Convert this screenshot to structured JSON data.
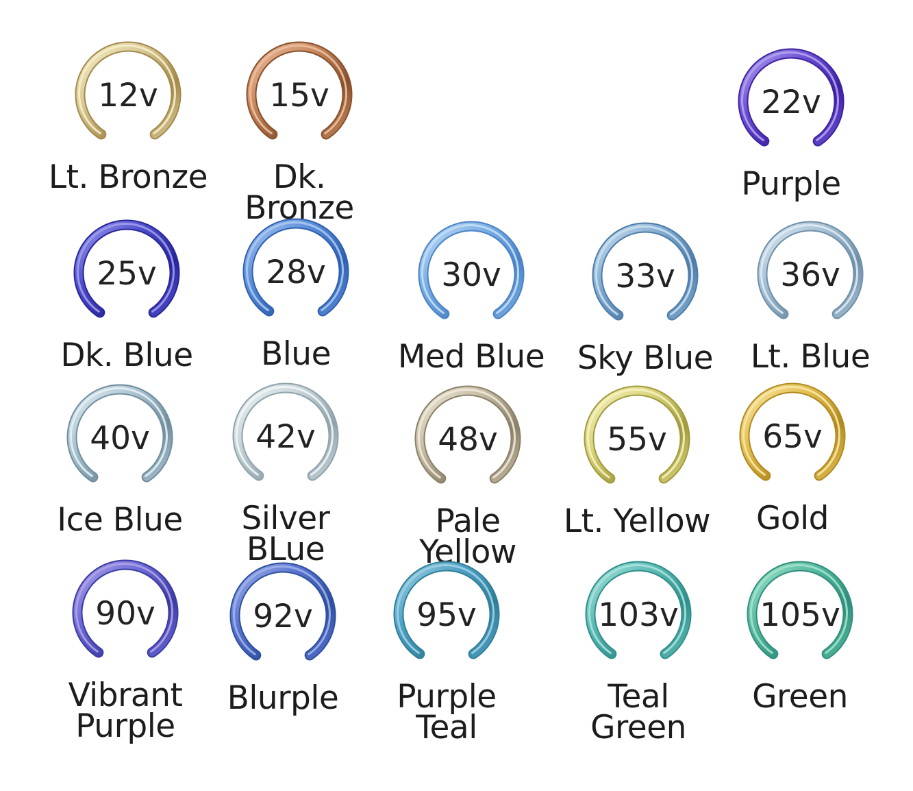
{
  "rings": [
    {
      "voltage": "12v",
      "name": "Lt. Bronze",
      "colors": [
        "#a3894a",
        "#d8c896",
        "#f6eec9"
      ]
    },
    {
      "voltage": "15v",
      "name": "Dk. Bronze",
      "colors": [
        "#87502c",
        "#c8875c",
        "#ecc0a0"
      ]
    },
    {
      "voltage": "22v",
      "name": "Purple",
      "colors": [
        "#3e21a2",
        "#6a4fd2",
        "#b3a3ef"
      ]
    },
    {
      "voltage": "25v",
      "name": "Dk. Blue",
      "colors": [
        "#27259a",
        "#4f4ecb",
        "#9e9ded"
      ]
    },
    {
      "voltage": "28v",
      "name": "Blue",
      "colors": [
        "#2f5fb0",
        "#5a8cd8",
        "#aac9f1"
      ]
    },
    {
      "voltage": "30v",
      "name": "Med Blue",
      "colors": [
        "#4a83c6",
        "#79aee3",
        "#c3def6"
      ]
    },
    {
      "voltage": "33v",
      "name": "Sky Blue",
      "colors": [
        "#4c7ca8",
        "#82acd1",
        "#cce0f0"
      ]
    },
    {
      "voltage": "36v",
      "name": "Lt. Blue",
      "colors": [
        "#6f8fa8",
        "#a3bfd4",
        "#dfeaf3"
      ]
    },
    {
      "voltage": "40v",
      "name": "Ice Blue",
      "colors": [
        "#718e9e",
        "#a9c3d0",
        "#e6f0f5"
      ]
    },
    {
      "voltage": "42v",
      "name": "Silver BLue",
      "colors": [
        "#8fa2ab",
        "#c5d3d8",
        "#f1f5f6"
      ]
    },
    {
      "voltage": "48v",
      "name": "Pale Yellow",
      "colors": [
        "#8a8068",
        "#c5bca3",
        "#efe9da"
      ]
    },
    {
      "voltage": "55v",
      "name": "Lt. Yellow",
      "colors": [
        "#a09a3c",
        "#d9d47b",
        "#f6f2c0"
      ]
    },
    {
      "voltage": "65v",
      "name": "Gold",
      "colors": [
        "#b08a1e",
        "#e3bf52",
        "#f9e7a6"
      ]
    },
    {
      "voltage": "90v",
      "name": "Vibrant\nPurple",
      "colors": [
        "#3b3aa2",
        "#6d6ad6",
        "#aea3e8"
      ]
    },
    {
      "voltage": "92v",
      "name": "Blurple",
      "colors": [
        "#2d4f9e",
        "#5a72cf",
        "#9fb2ea"
      ]
    },
    {
      "voltage": "95v",
      "name": "Purple\nTeal",
      "colors": [
        "#2f7f98",
        "#4f9fc6",
        "#9fd2e4"
      ]
    },
    {
      "voltage": "103v",
      "name": "Teal\nGreen",
      "colors": [
        "#2f8e8c",
        "#5cbbb4",
        "#a8e2dc"
      ]
    },
    {
      "voltage": "105v",
      "name": "Green",
      "colors": [
        "#2f8e7c",
        "#56b99f",
        "#a2e3cc"
      ]
    }
  ]
}
